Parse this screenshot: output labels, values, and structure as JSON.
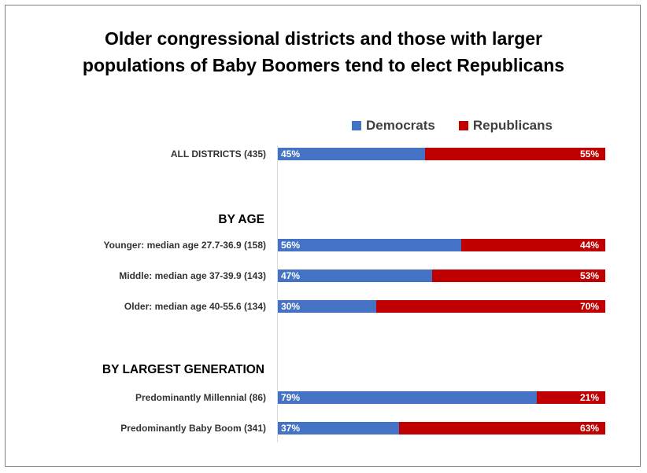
{
  "chart_data": {
    "type": "bar",
    "orientation": "horizontal",
    "stacked": true,
    "title": "Older congressional districts and those with larger populations of Baby Boomers tend to elect Republicans",
    "title_lines": [
      "Older congressional districts and those with larger",
      "populations of Baby Boomers tend to elect Republicans"
    ],
    "legend_position": "top",
    "series": [
      {
        "name": "Democrats",
        "color": "#4472c4"
      },
      {
        "name": "Republicans",
        "color": "#c00000"
      }
    ],
    "groups": [
      {
        "label": "",
        "categories": [
          {
            "label": "ALL DISTRICTS (435)",
            "dem": 45,
            "rep": 55,
            "dem_label": "45%",
            "rep_label": "55%"
          }
        ]
      },
      {
        "label": "BY AGE",
        "categories": [
          {
            "label": "Younger: median age 27.7-36.9 (158)",
            "dem": 56,
            "rep": 44,
            "dem_label": "56%",
            "rep_label": "44%"
          },
          {
            "label": "Middle: median age 37-39.9 (143)",
            "dem": 47,
            "rep": 53,
            "dem_label": "47%",
            "rep_label": "53%"
          },
          {
            "label": "Older: median age 40-55.6 (134)",
            "dem": 30,
            "rep": 70,
            "dem_label": "30%",
            "rep_label": "70%"
          }
        ]
      },
      {
        "label": "BY LARGEST GENERATION",
        "categories": [
          {
            "label": "Predominantly Millennial (86)",
            "dem": 79,
            "rep": 21,
            "dem_label": "79%",
            "rep_label": "21%"
          },
          {
            "label": "Predominantly Baby Boom (341)",
            "dem": 37,
            "rep": 63,
            "dem_label": "37%",
            "rep_label": "63%"
          }
        ]
      }
    ],
    "xlim": [
      0,
      100
    ],
    "grid": false
  }
}
